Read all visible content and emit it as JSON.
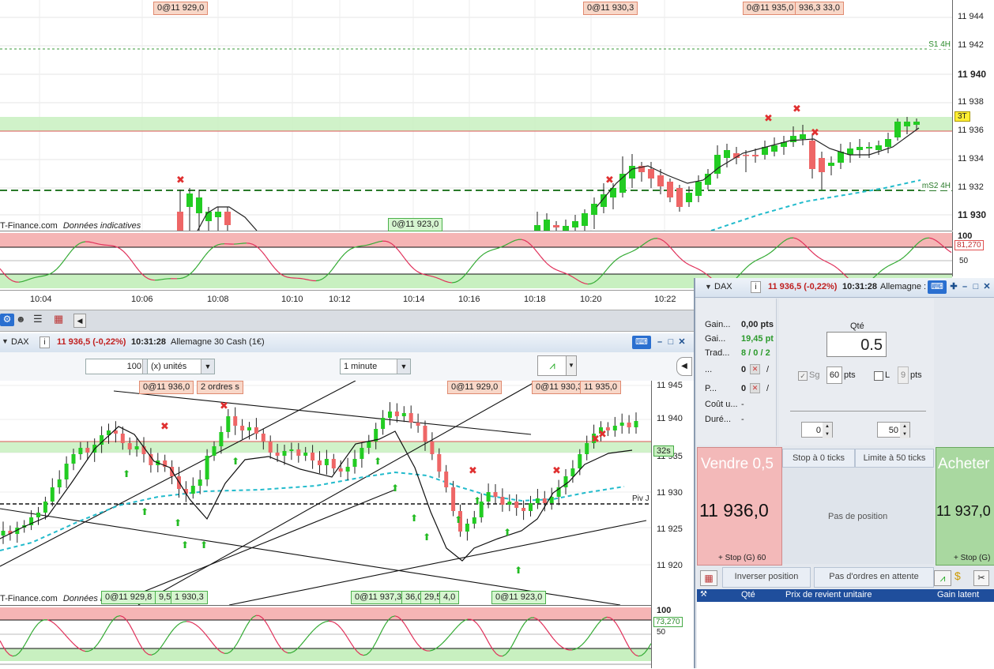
{
  "top_chart": {
    "tags_top": [
      "0@11 929,0",
      "0@11 930,3",
      "0@11 935,0",
      "936,3 33,0"
    ],
    "credit": "T-Finance.com",
    "credit_note": "Données indicatives",
    "bottom_tag": "0@11 923,0",
    "price_levels": [
      "11 944",
      "11 942",
      "11 940",
      "11 938",
      "11 936",
      "11 934",
      "11 932",
      "11 930"
    ],
    "last_price_badge": "3T",
    "s1_label": "S1 4H",
    "ms2_label": "mS2 4H",
    "osc_levels": [
      "100",
      "50"
    ],
    "osc_value": "81,270",
    "times": [
      "10:04",
      "10:06",
      "10:08",
      "10:10",
      "10:12",
      "10:14",
      "10:16",
      "10:18",
      "10:20",
      "10:22"
    ]
  },
  "bottom_chart": {
    "instrument": "DAX",
    "price_change": "11 936,5 (-0,22%)",
    "time": "10:31:28",
    "name": "Allemagne 30 Cash (1€)",
    "qty_value": "100",
    "unit_select": "(x) unités",
    "interval_select": "1 minute",
    "tags_top": [
      "0@11 936,0",
      "2 ordres s",
      "0@11 929,0",
      "0@11 930,3",
      "11 935,0"
    ],
    "tags_bottom": [
      "0@11 929,8",
      "9,5",
      "1 930,3",
      "0@11 937,3",
      "36,0",
      "29,5",
      "4,0",
      "0@11 923,0"
    ],
    "credit": "T-Finance.com",
    "credit_note": "Données indicatives",
    "price_levels": [
      "11 945",
      "11 940",
      "11 935",
      "11 930",
      "11 925",
      "11 920"
    ],
    "countdown_badge": "32s",
    "piv_label": "Piv J",
    "osc_levels": [
      "100",
      "50"
    ],
    "osc_value": "73,270"
  },
  "order_panel": {
    "instrument": "DAX",
    "price_change": "11 936,5 (-0,22%)",
    "time": "10:31:28",
    "name": "Allemagne :",
    "stats": [
      {
        "label": "Gain...",
        "value": "0,00 pts",
        "color": "#222222"
      },
      {
        "label": "Gai...",
        "value": "19,45 pt",
        "color": "#2c9a2c"
      },
      {
        "label": "Trad...",
        "value": "8 / 0 / 2",
        "color": "#2c9a2c"
      },
      {
        "label": "...",
        "value": "0",
        "color": "#222222"
      },
      {
        "label": "P...",
        "value": "0",
        "color": "#222222"
      },
      {
        "label": "Coût u...",
        "value": "-",
        "color": "#222222"
      },
      {
        "label": "Duré...",
        "value": "-",
        "color": "#222222"
      }
    ],
    "qty_label": "Qté",
    "qty_value": "0.5",
    "sg_label": "Sg",
    "sg_value": "60",
    "sg_unit": "pts",
    "l_label": "L",
    "l_value": "9",
    "l_unit": "pts",
    "stepper_left": "0",
    "stepper_right": "50",
    "sell_label": "Vendre 0,5",
    "sell_price": "11 936,0",
    "sell_stop": "+ Stop (G) 60",
    "buy_label": "Acheter",
    "buy_price": "11 937,0",
    "buy_stop": "+ Stop (G)",
    "stop_ticks": "Stop à 0 ticks",
    "limit_ticks": "Limite à 50 ticks",
    "no_position": "Pas de position",
    "reverse_position": "Inverser position",
    "no_orders": "Pas d'ordres en attente",
    "table_headers": [
      "Qté",
      "Prix de revient unitaire",
      "Gain latent"
    ]
  },
  "colors": {
    "bull": "#22cc22",
    "bear": "#ee6666",
    "sell_bg": "#f3b9b9",
    "buy_bg": "#a9d8a0",
    "zone_green": "#c8f0c0",
    "zone_red": "#f5b5b5",
    "cyan": "#22bbcc"
  }
}
